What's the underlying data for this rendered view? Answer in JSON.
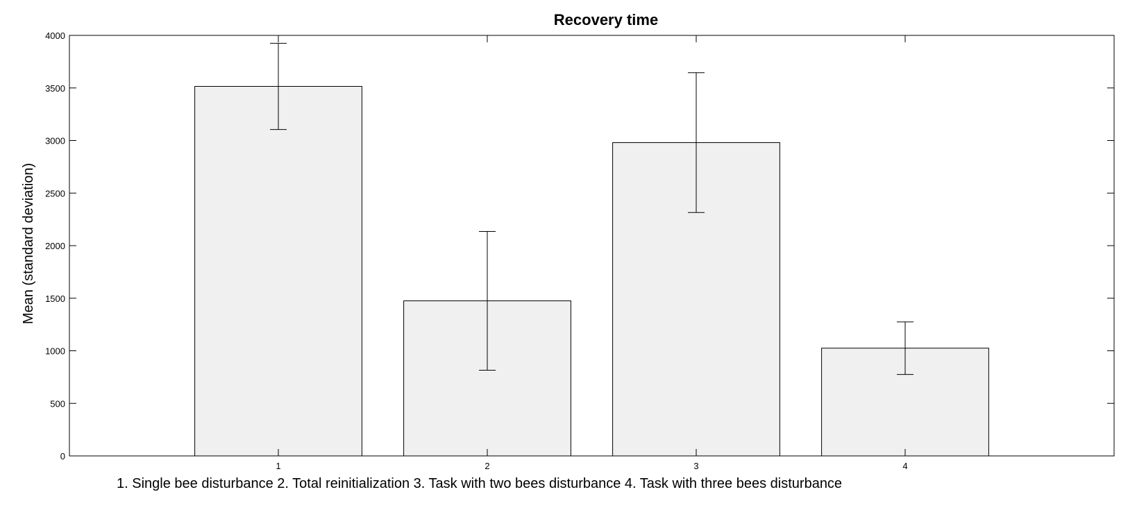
{
  "chart_data": {
    "type": "bar",
    "title": "Recovery time",
    "ylabel": "Mean (standard deviation)",
    "xlabel": "1. Single bee disturbance   2. Total reinitialization  3. Task with two bees disturbance  4. Task with three bees disturbance",
    "categories": [
      "1",
      "2",
      "3",
      "4"
    ],
    "values": [
      3515,
      1475,
      2980,
      1025
    ],
    "errors": [
      410,
      660,
      665,
      250
    ],
    "ylim": [
      0,
      4000
    ],
    "yticks": [
      0,
      500,
      1000,
      1500,
      2000,
      2500,
      3000,
      3500,
      4000
    ],
    "grid": false,
    "bar_color": "#f0f0f0"
  }
}
